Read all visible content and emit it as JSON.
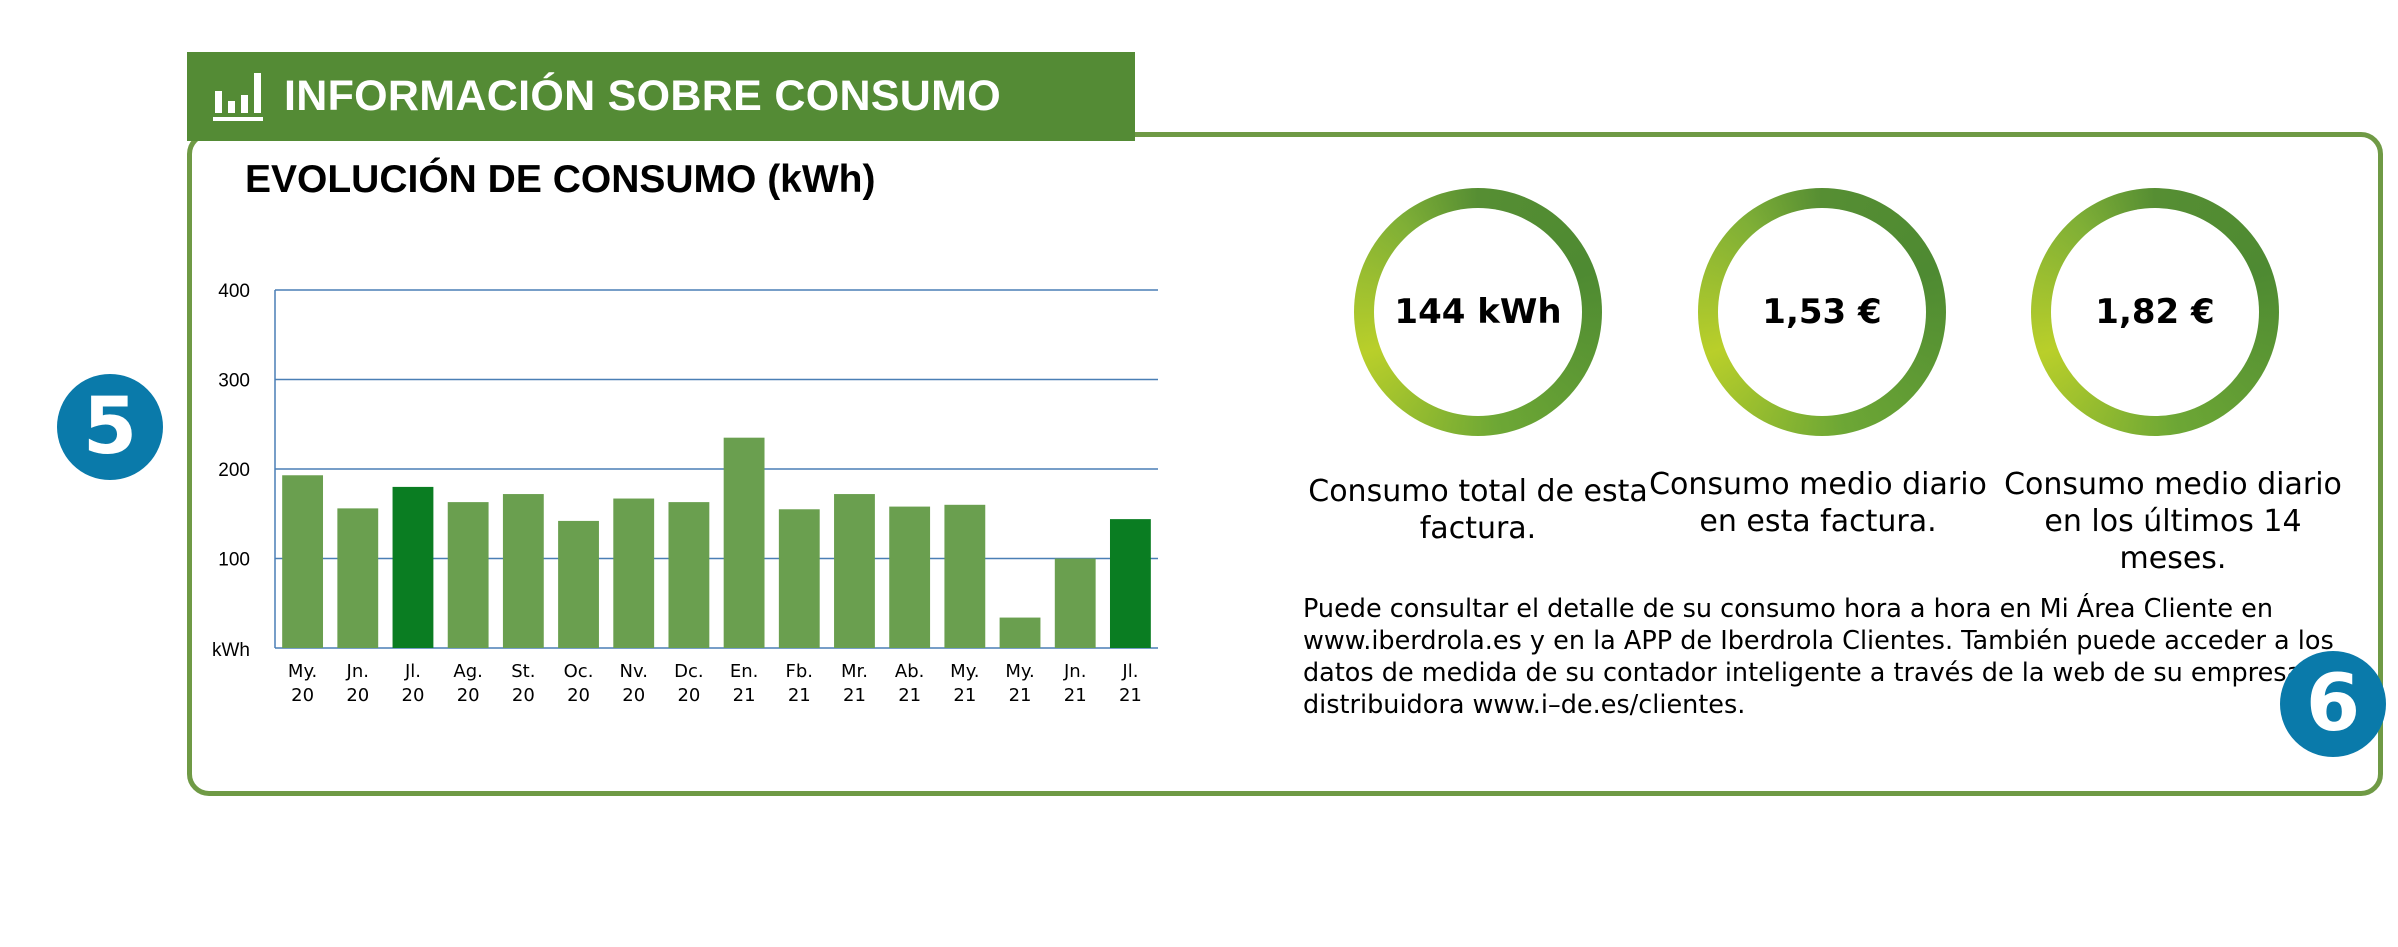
{
  "header": {
    "title": "INFORMACIÓN SOBRE CONSUMO",
    "icon": "bar-chart-icon",
    "color": "#548b35"
  },
  "section_title": "EVOLUCIÓN DE CONSUMO (kWh)",
  "badges": {
    "left": "5",
    "right": "6",
    "color": "#0a7aaa"
  },
  "chart_data": {
    "type": "bar",
    "title": "EVOLUCIÓN DE CONSUMO (kWh)",
    "ylabel": "kWh",
    "ylim": [
      0,
      400
    ],
    "yticks": [
      "400",
      "300",
      "200",
      "100"
    ],
    "grid": true,
    "categories": [
      [
        "My.",
        "20"
      ],
      [
        "Jn.",
        "20"
      ],
      [
        "Jl.",
        "20"
      ],
      [
        "Ag.",
        "20"
      ],
      [
        "St.",
        "20"
      ],
      [
        "Oc.",
        "20"
      ],
      [
        "Nv.",
        "20"
      ],
      [
        "Dc.",
        "20"
      ],
      [
        "En.",
        "21"
      ],
      [
        "Fb.",
        "21"
      ],
      [
        "Mr.",
        "21"
      ],
      [
        "Ab.",
        "21"
      ],
      [
        "My.",
        "21"
      ],
      [
        "My.",
        "21"
      ],
      [
        "Jn.",
        "21"
      ],
      [
        "Jl.",
        "21"
      ]
    ],
    "values": [
      193,
      156,
      180,
      163,
      172,
      142,
      167,
      163,
      235,
      155,
      172,
      158,
      160,
      34,
      100,
      144
    ],
    "highlight_indices": [
      2,
      15
    ],
    "colors": {
      "normal": "#6a9f4f",
      "highlight": "#0a7d22",
      "grid": "#4a7fb5"
    }
  },
  "summary": [
    {
      "value": "144 kWh",
      "label": "Consumo total de esta factura."
    },
    {
      "value": "1,53 €",
      "label": "Consumo medio diario en esta factura."
    },
    {
      "value": "1,82 €",
      "label": "Consumo medio diario en los últimos 14 meses."
    }
  ],
  "info_text": "Puede consultar el detalle de su consumo hora a hora en Mi Área Cliente en www.iberdrola.es y en la APP de Iberdrola Clientes. También puede acceder a los datos de medida de su contador inteligente a través de la web de su empresa distribuidora www.i–de.es/clientes."
}
